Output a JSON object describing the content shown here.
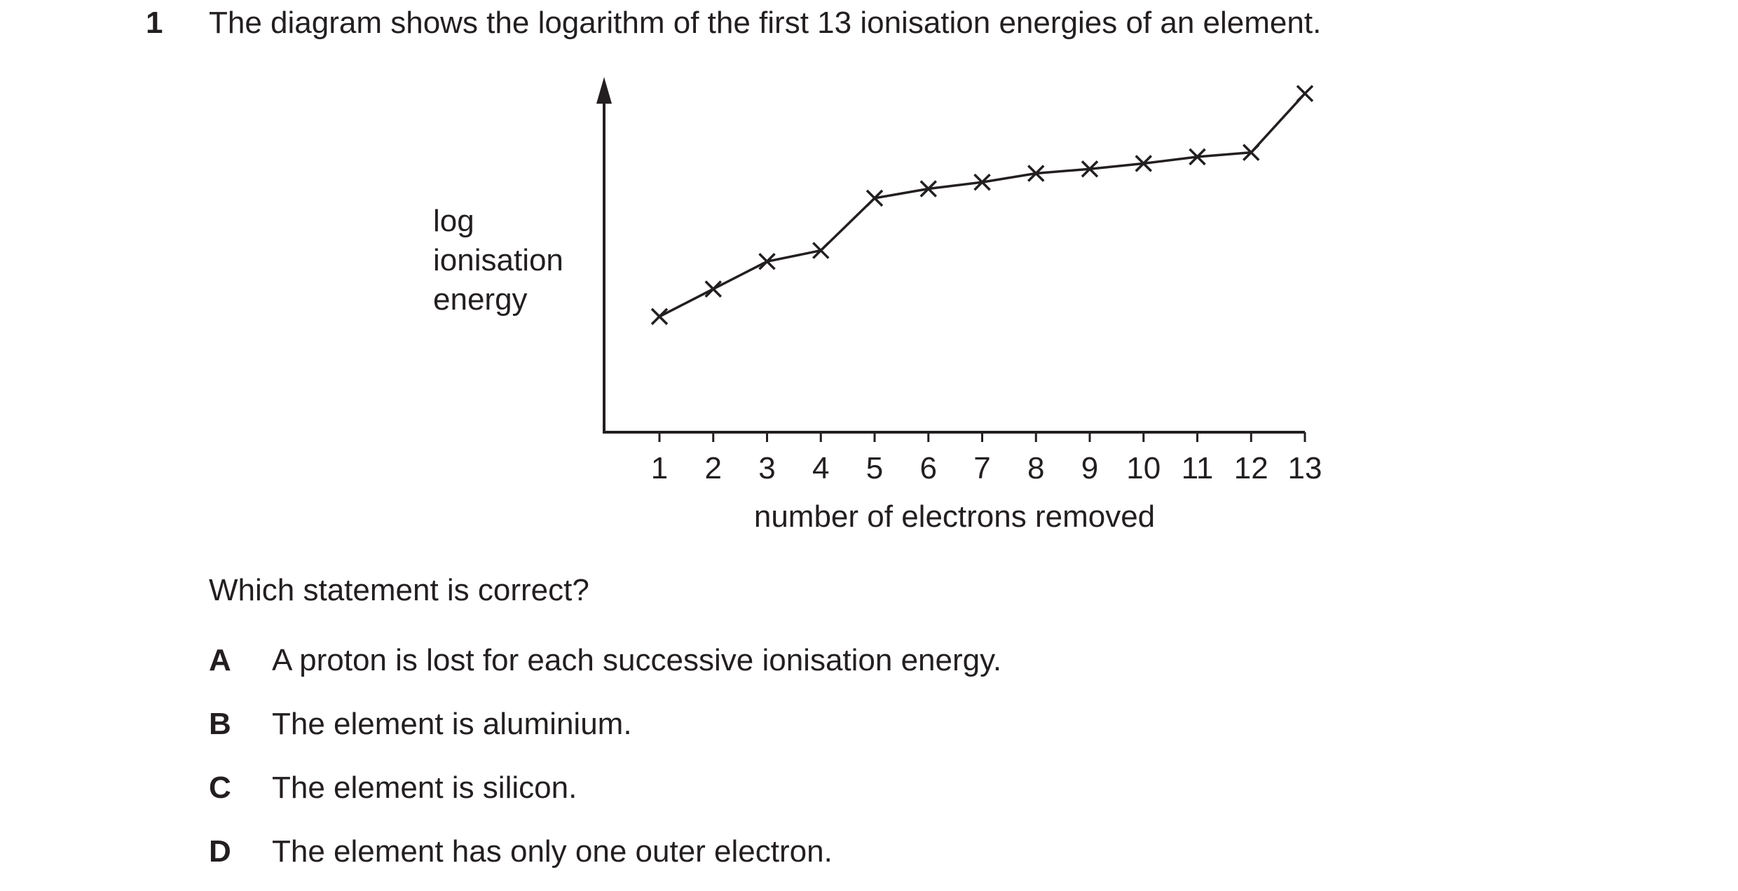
{
  "question": {
    "number": "1",
    "stem": "The diagram shows the logarithm of the first 13 ionisation energies of an element.",
    "prompt": "Which statement is correct?",
    "options": [
      {
        "letter": "A",
        "text": "A proton is lost for each successive ionisation energy."
      },
      {
        "letter": "B",
        "text": "The element is aluminium."
      },
      {
        "letter": "C",
        "text": "The element is silicon."
      },
      {
        "letter": "D",
        "text": "The element has only one outer electron."
      }
    ]
  },
  "chart_data": {
    "type": "line",
    "title": "",
    "ylabel_lines": [
      "log",
      "ionisation",
      "energy"
    ],
    "xlabel": "number of electrons removed",
    "x": [
      1,
      2,
      3,
      4,
      5,
      6,
      7,
      8,
      9,
      10,
      11,
      12,
      13
    ],
    "series": [
      {
        "values": [
          2.1,
          2.6,
          3.1,
          3.3,
          4.25,
          4.42,
          4.54,
          4.7,
          4.78,
          4.88,
          5.0,
          5.08,
          6.15
        ]
      }
    ],
    "marker": "cross",
    "ylim": [
      0,
      6.5
    ],
    "y_ticks": false,
    "grid": false,
    "legend": "none",
    "colors": {
      "line": "#231f20"
    }
  }
}
